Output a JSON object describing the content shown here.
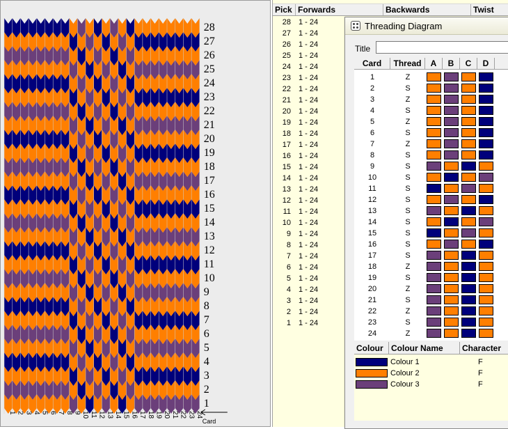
{
  "pattern": {
    "pick_count": 28,
    "card_count": 24,
    "card_axis_label": "Card",
    "pick_labels": [
      "1",
      "2",
      "3",
      "4",
      "5",
      "6",
      "7",
      "8",
      "9",
      "10",
      "11",
      "12",
      "13",
      "14",
      "15",
      "16",
      "17",
      "18",
      "19",
      "20",
      "21",
      "22",
      "23",
      "24",
      "25",
      "26",
      "27",
      "28"
    ],
    "card_labels": [
      "1",
      "2",
      "3",
      "4",
      "5",
      "6",
      "7",
      "8",
      "9",
      "10",
      "11",
      "12",
      "13",
      "14",
      "15",
      "16",
      "17",
      "18",
      "19",
      "20",
      "21",
      "22",
      "23",
      "24"
    ],
    "arrow_icon": "left-arrow-icon"
  },
  "pick_list": {
    "headers": {
      "pick": "Pick",
      "forwards": "Forwards",
      "backwards": "Backwards",
      "twist": "Twist"
    },
    "rows": [
      {
        "pick": "28",
        "forwards": "1 - 24"
      },
      {
        "pick": "27",
        "forwards": "1 - 24"
      },
      {
        "pick": "26",
        "forwards": "1 - 24"
      },
      {
        "pick": "25",
        "forwards": "1 - 24"
      },
      {
        "pick": "24",
        "forwards": "1 - 24"
      },
      {
        "pick": "23",
        "forwards": "1 - 24"
      },
      {
        "pick": "22",
        "forwards": "1 - 24"
      },
      {
        "pick": "21",
        "forwards": "1 - 24"
      },
      {
        "pick": "20",
        "forwards": "1 - 24"
      },
      {
        "pick": "19",
        "forwards": "1 - 24"
      },
      {
        "pick": "18",
        "forwards": "1 - 24"
      },
      {
        "pick": "17",
        "forwards": "1 - 24"
      },
      {
        "pick": "16",
        "forwards": "1 - 24"
      },
      {
        "pick": "15",
        "forwards": "1 - 24"
      },
      {
        "pick": "14",
        "forwards": "1 - 24"
      },
      {
        "pick": "13",
        "forwards": "1 - 24"
      },
      {
        "pick": "12",
        "forwards": "1 - 24"
      },
      {
        "pick": "11",
        "forwards": "1 - 24"
      },
      {
        "pick": "10",
        "forwards": "1 - 24"
      },
      {
        "pick": "9",
        "forwards": "1 - 24"
      },
      {
        "pick": "8",
        "forwards": "1 - 24"
      },
      {
        "pick": "7",
        "forwards": "1 - 24"
      },
      {
        "pick": "6",
        "forwards": "1 - 24"
      },
      {
        "pick": "5",
        "forwards": "1 - 24"
      },
      {
        "pick": "4",
        "forwards": "1 - 24"
      },
      {
        "pick": "3",
        "forwards": "1 - 24"
      },
      {
        "pick": "2",
        "forwards": "1 - 24"
      },
      {
        "pick": "1",
        "forwards": "1 - 24"
      }
    ]
  },
  "threading_window": {
    "title": "Threading Diagram",
    "icon": "grid-dots-icon",
    "title_label": "Title",
    "title_value": "",
    "card_headers": {
      "card": "Card",
      "thread": "Thread",
      "a": "A",
      "b": "B",
      "c": "C",
      "d": "D"
    },
    "cards": [
      {
        "card": "1",
        "thread": "Z",
        "holes": [
          2,
          3,
          2,
          1
        ]
      },
      {
        "card": "2",
        "thread": "S",
        "holes": [
          2,
          3,
          2,
          1
        ]
      },
      {
        "card": "3",
        "thread": "Z",
        "holes": [
          2,
          3,
          2,
          1
        ]
      },
      {
        "card": "4",
        "thread": "S",
        "holes": [
          2,
          3,
          2,
          1
        ]
      },
      {
        "card": "5",
        "thread": "Z",
        "holes": [
          2,
          3,
          2,
          1
        ]
      },
      {
        "card": "6",
        "thread": "S",
        "holes": [
          2,
          3,
          2,
          1
        ]
      },
      {
        "card": "7",
        "thread": "Z",
        "holes": [
          2,
          3,
          2,
          1
        ]
      },
      {
        "card": "8",
        "thread": "S",
        "holes": [
          2,
          3,
          2,
          1
        ]
      },
      {
        "card": "9",
        "thread": "S",
        "holes": [
          3,
          2,
          1,
          2
        ]
      },
      {
        "card": "10",
        "thread": "S",
        "holes": [
          2,
          1,
          2,
          3
        ]
      },
      {
        "card": "11",
        "thread": "S",
        "holes": [
          1,
          2,
          3,
          2
        ]
      },
      {
        "card": "12",
        "thread": "S",
        "holes": [
          2,
          3,
          2,
          1
        ]
      },
      {
        "card": "13",
        "thread": "S",
        "holes": [
          3,
          2,
          1,
          2
        ]
      },
      {
        "card": "14",
        "thread": "S",
        "holes": [
          2,
          1,
          2,
          3
        ]
      },
      {
        "card": "15",
        "thread": "S",
        "holes": [
          1,
          2,
          3,
          2
        ]
      },
      {
        "card": "16",
        "thread": "S",
        "holes": [
          2,
          3,
          2,
          1
        ]
      },
      {
        "card": "17",
        "thread": "S",
        "holes": [
          3,
          2,
          1,
          2
        ]
      },
      {
        "card": "18",
        "thread": "Z",
        "holes": [
          3,
          2,
          1,
          2
        ]
      },
      {
        "card": "19",
        "thread": "S",
        "holes": [
          3,
          2,
          1,
          2
        ]
      },
      {
        "card": "20",
        "thread": "Z",
        "holes": [
          3,
          2,
          1,
          2
        ]
      },
      {
        "card": "21",
        "thread": "S",
        "holes": [
          3,
          2,
          1,
          2
        ]
      },
      {
        "card": "22",
        "thread": "Z",
        "holes": [
          3,
          2,
          1,
          2
        ]
      },
      {
        "card": "23",
        "thread": "S",
        "holes": [
          3,
          2,
          1,
          2
        ]
      },
      {
        "card": "24",
        "thread": "Z",
        "holes": [
          3,
          2,
          1,
          2
        ]
      }
    ],
    "colour_headers": {
      "colour": "Colour",
      "name": "Colour Name",
      "character": "Character"
    },
    "colours": [
      {
        "hex": "#00007b",
        "name": "Colour 1",
        "character": "F"
      },
      {
        "hex": "#ff7f00",
        "name": "Colour 2",
        "character": "F"
      },
      {
        "hex": "#6b3f7a",
        "name": "Colour 3",
        "character": "F"
      }
    ]
  }
}
